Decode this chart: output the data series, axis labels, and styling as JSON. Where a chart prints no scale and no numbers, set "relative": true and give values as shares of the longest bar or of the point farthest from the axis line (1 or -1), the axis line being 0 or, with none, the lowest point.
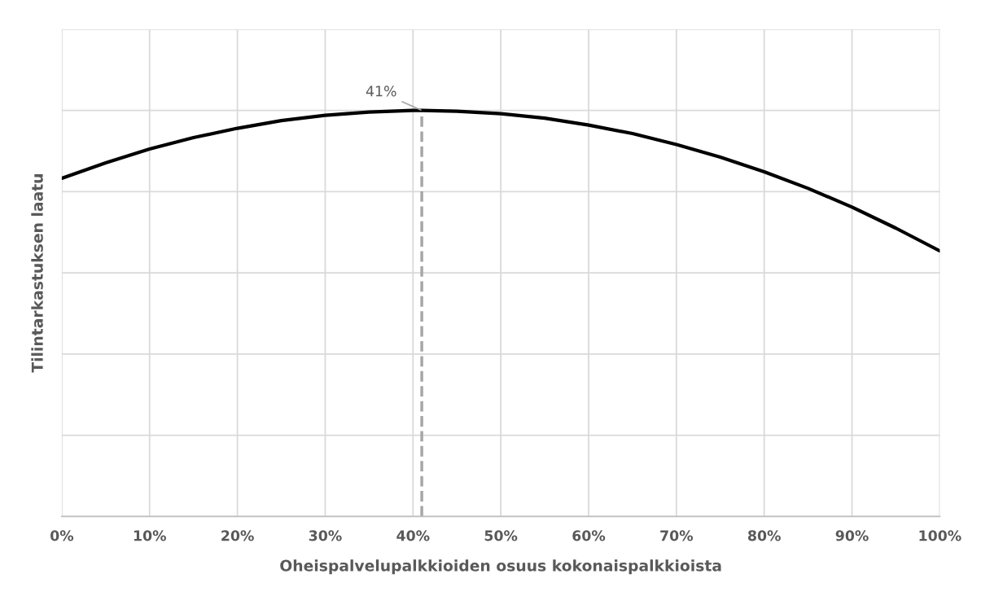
{
  "chart_data": {
    "type": "line",
    "relative": true,
    "xlabel": "Oheispalvelupalkkioiden osuus kokonaispalkkioista",
    "ylabel": "Tilintarkastuksen laatu",
    "x": [
      0,
      5,
      10,
      15,
      20,
      25,
      30,
      35,
      40,
      41,
      45,
      50,
      55,
      60,
      65,
      70,
      75,
      80,
      85,
      90,
      95,
      100
    ],
    "series": [
      {
        "color": "#000000",
        "values": [
          0.833,
          0.871,
          0.905,
          0.933,
          0.956,
          0.975,
          0.988,
          0.996,
          1.0,
          1.0,
          0.998,
          0.992,
          0.981,
          0.964,
          0.943,
          0.916,
          0.885,
          0.849,
          0.808,
          0.762,
          0.71,
          0.654
        ]
      }
    ],
    "xlim": [
      0,
      100
    ],
    "xticks": [
      {
        "value": 0,
        "label": "0%"
      },
      {
        "value": 10,
        "label": "10%"
      },
      {
        "value": 20,
        "label": "20%"
      },
      {
        "value": 30,
        "label": "30%"
      },
      {
        "value": 40,
        "label": "40%"
      },
      {
        "value": 50,
        "label": "50%"
      },
      {
        "value": 60,
        "label": "60%"
      },
      {
        "value": 70,
        "label": "70%"
      },
      {
        "value": 80,
        "label": "80%"
      },
      {
        "value": 90,
        "label": "90%"
      },
      {
        "value": 100,
        "label": "100%"
      }
    ],
    "ref_lines": [
      {
        "axis": "x",
        "value": 41,
        "label": "41%",
        "color": "#a6a6a6",
        "line_style": "dashed"
      }
    ],
    "grid": true,
    "legend": false,
    "marker": "none",
    "line_style": "solid",
    "tick_labels": "x"
  }
}
